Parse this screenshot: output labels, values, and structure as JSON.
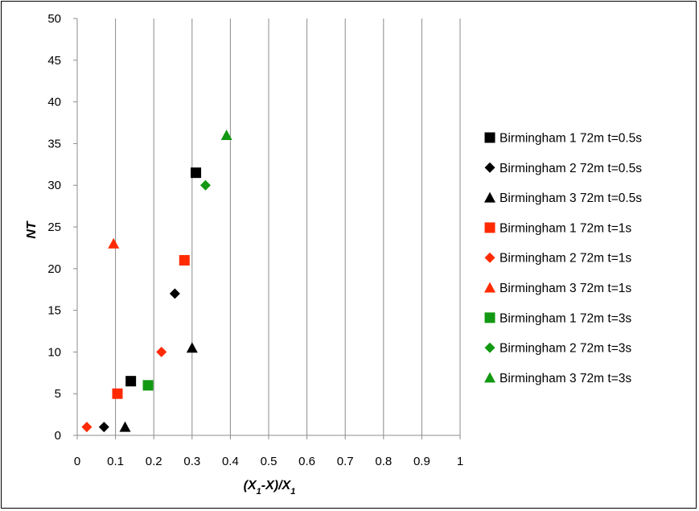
{
  "chart_data": {
    "type": "scatter",
    "xlabel": "(X1-X)/X1",
    "ylabel": "NT",
    "xlim": [
      0,
      1
    ],
    "ylim": [
      0,
      50
    ],
    "x_ticks": [
      "0",
      "0.1",
      "0.2",
      "0.3",
      "0.4",
      "0.5",
      "0.6",
      "0.7",
      "0.8",
      "0.9",
      "1"
    ],
    "y_ticks": [
      "0",
      "5",
      "10",
      "15",
      "20",
      "25",
      "30",
      "35",
      "40",
      "45",
      "50"
    ],
    "grid": "vertical gridlines only",
    "legend_position": "right",
    "series": [
      {
        "name": "Birmingham 1 72m t=0.5s",
        "color": "#000000",
        "marker": "square",
        "points": [
          [
            0.14,
            6.5
          ],
          [
            0.31,
            31.5
          ]
        ]
      },
      {
        "name": "Birmingham 2 72m t=0.5s",
        "color": "#000000",
        "marker": "diamond",
        "points": [
          [
            0.07,
            1
          ],
          [
            0.255,
            17
          ]
        ]
      },
      {
        "name": "Birmingham 3 72m t=0.5s",
        "color": "#000000",
        "marker": "triangle",
        "points": [
          [
            0.125,
            1
          ],
          [
            0.3,
            10.5
          ]
        ]
      },
      {
        "name": "Birmingham 1 72m t=1s",
        "color": "#ff2a00",
        "marker": "square",
        "points": [
          [
            0.105,
            5
          ],
          [
            0.28,
            21
          ]
        ]
      },
      {
        "name": "Birmingham 2 72m t=1s",
        "color": "#ff2a00",
        "marker": "diamond",
        "points": [
          [
            0.025,
            1
          ],
          [
            0.22,
            10
          ]
        ]
      },
      {
        "name": "Birmingham 3 72m t=1s",
        "color": "#ff2a00",
        "marker": "triangle",
        "points": [
          [
            0.095,
            23
          ]
        ]
      },
      {
        "name": "Birmingham 1 72m t=3s",
        "color": "#129812",
        "marker": "square",
        "points": [
          [
            0.185,
            6
          ]
        ]
      },
      {
        "name": "Birmingham 2 72m t=3s",
        "color": "#129812",
        "marker": "diamond",
        "points": [
          [
            0.335,
            30
          ]
        ]
      },
      {
        "name": "Birmingham 3 72m t=3s",
        "color": "#129812",
        "marker": "triangle",
        "points": [
          [
            0.39,
            36
          ]
        ]
      }
    ]
  }
}
